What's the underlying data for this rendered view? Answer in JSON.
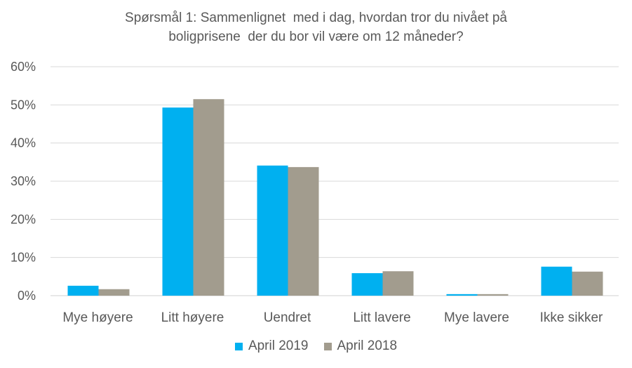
{
  "chart_data": {
    "type": "bar",
    "title_lines": [
      "Spørsmål 1: Sammenlignet  med i dag, hvordan tror du nivået på",
      "boligprisene  der du bor vil være om 12 måneder?"
    ],
    "categories": [
      "Mye høyere",
      "Litt høyere",
      "Uendret",
      "Litt lavere",
      "Mye lavere",
      "Ikke sikker"
    ],
    "series": [
      {
        "name": "April 2019",
        "color": "#00B0F0",
        "values": [
          2.6,
          49.3,
          34.1,
          5.9,
          0.4,
          7.6
        ]
      },
      {
        "name": "April 2018",
        "color": "#A29C8E",
        "values": [
          1.7,
          51.5,
          33.7,
          6.4,
          0.4,
          6.3
        ]
      }
    ],
    "ylim": [
      0,
      60
    ],
    "yticks": [
      "0%",
      "10%",
      "20%",
      "30%",
      "40%",
      "50%",
      "60%"
    ],
    "grid": true,
    "legend_position": "bottom"
  }
}
